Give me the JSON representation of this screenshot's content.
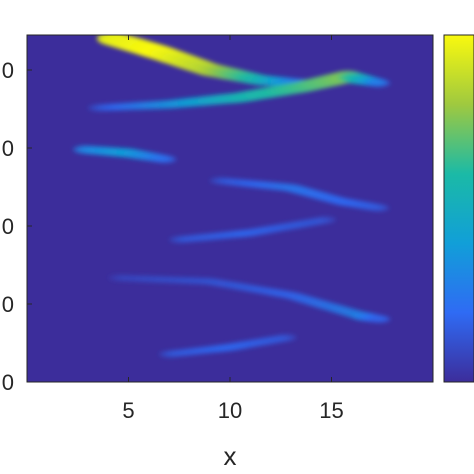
{
  "chart_data": {
    "type": "heatmap",
    "colormap": "parula",
    "background_color": "#3c2d9b",
    "xlabel": "x",
    "xlim": [
      0,
      20
    ],
    "xticks": [
      5,
      10,
      15
    ],
    "xtick_labels": [
      "5",
      "10",
      "15"
    ],
    "ytick_labels_visible": [
      "0",
      "0",
      "0",
      "0",
      "0"
    ],
    "colorbar": {
      "position": "right",
      "range": [
        0,
        1
      ],
      "tick_labels_visible": false
    },
    "grid": false,
    "ridges": [
      {
        "name": "",
        "points": [
          [
            4.2,
            0.99,
            0.95
          ],
          [
            6.5,
            0.95,
            1.0
          ],
          [
            9.0,
            0.9,
            0.85
          ],
          [
            11.5,
            0.87,
            0.55
          ],
          [
            14.0,
            0.86,
            0.15
          ]
        ]
      },
      {
        "name": "",
        "points": [
          [
            3.5,
            0.79,
            0.15
          ],
          [
            7.0,
            0.8,
            0.35
          ],
          [
            10.5,
            0.82,
            0.55
          ],
          [
            13.5,
            0.85,
            0.65
          ],
          [
            15.8,
            0.88,
            0.75
          ],
          [
            17.5,
            0.86,
            0.2
          ]
        ]
      },
      {
        "name": "",
        "points": [
          [
            2.8,
            0.67,
            0.3
          ],
          [
            5.0,
            0.66,
            0.4
          ],
          [
            7.0,
            0.64,
            0.2
          ]
        ]
      },
      {
        "name": "",
        "points": [
          [
            9.5,
            0.58,
            0.15
          ],
          [
            13.0,
            0.56,
            0.25
          ],
          [
            15.5,
            0.52,
            0.2
          ],
          [
            17.5,
            0.5,
            0.15
          ]
        ]
      },
      {
        "name": "",
        "points": [
          [
            7.5,
            0.41,
            0.15
          ],
          [
            11.0,
            0.43,
            0.2
          ],
          [
            15.0,
            0.47,
            0.15
          ]
        ]
      },
      {
        "name": "",
        "points": [
          [
            4.5,
            0.3,
            0.1
          ],
          [
            9.0,
            0.29,
            0.15
          ],
          [
            13.0,
            0.25,
            0.2
          ],
          [
            16.5,
            0.19,
            0.3
          ],
          [
            17.5,
            0.18,
            0.15
          ]
        ]
      },
      {
        "name": "",
        "points": [
          [
            7.0,
            0.08,
            0.15
          ],
          [
            10.0,
            0.1,
            0.2
          ],
          [
            13.0,
            0.13,
            0.15
          ]
        ]
      }
    ]
  }
}
